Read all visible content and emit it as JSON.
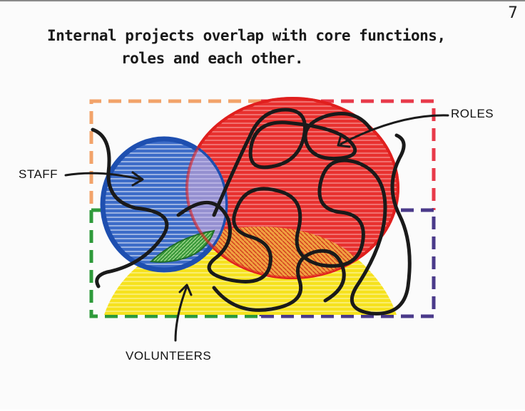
{
  "page": {
    "number": "7",
    "title_line1": "Internal projects overlap with core functions,",
    "title_line2": "roles and each other."
  },
  "diagram": {
    "labels": {
      "staff": "STAFF",
      "roles": "ROLES",
      "volunteers": "VOLUNTEERS"
    },
    "colors": {
      "staff": "#2f5fbf",
      "roles": "#e8262a",
      "volunteers": "#f4e01c",
      "overlap_purple": "#8f86c9",
      "overlap_green": "#3a9b3a",
      "overlap_orange": "#f2a43a",
      "quadrant_orange": "#f2a36a",
      "quadrant_red": "#e83a4a",
      "quadrant_green": "#2e9a3a",
      "quadrant_purple": "#4a3a8a",
      "ink": "#1a1a1a"
    }
  }
}
